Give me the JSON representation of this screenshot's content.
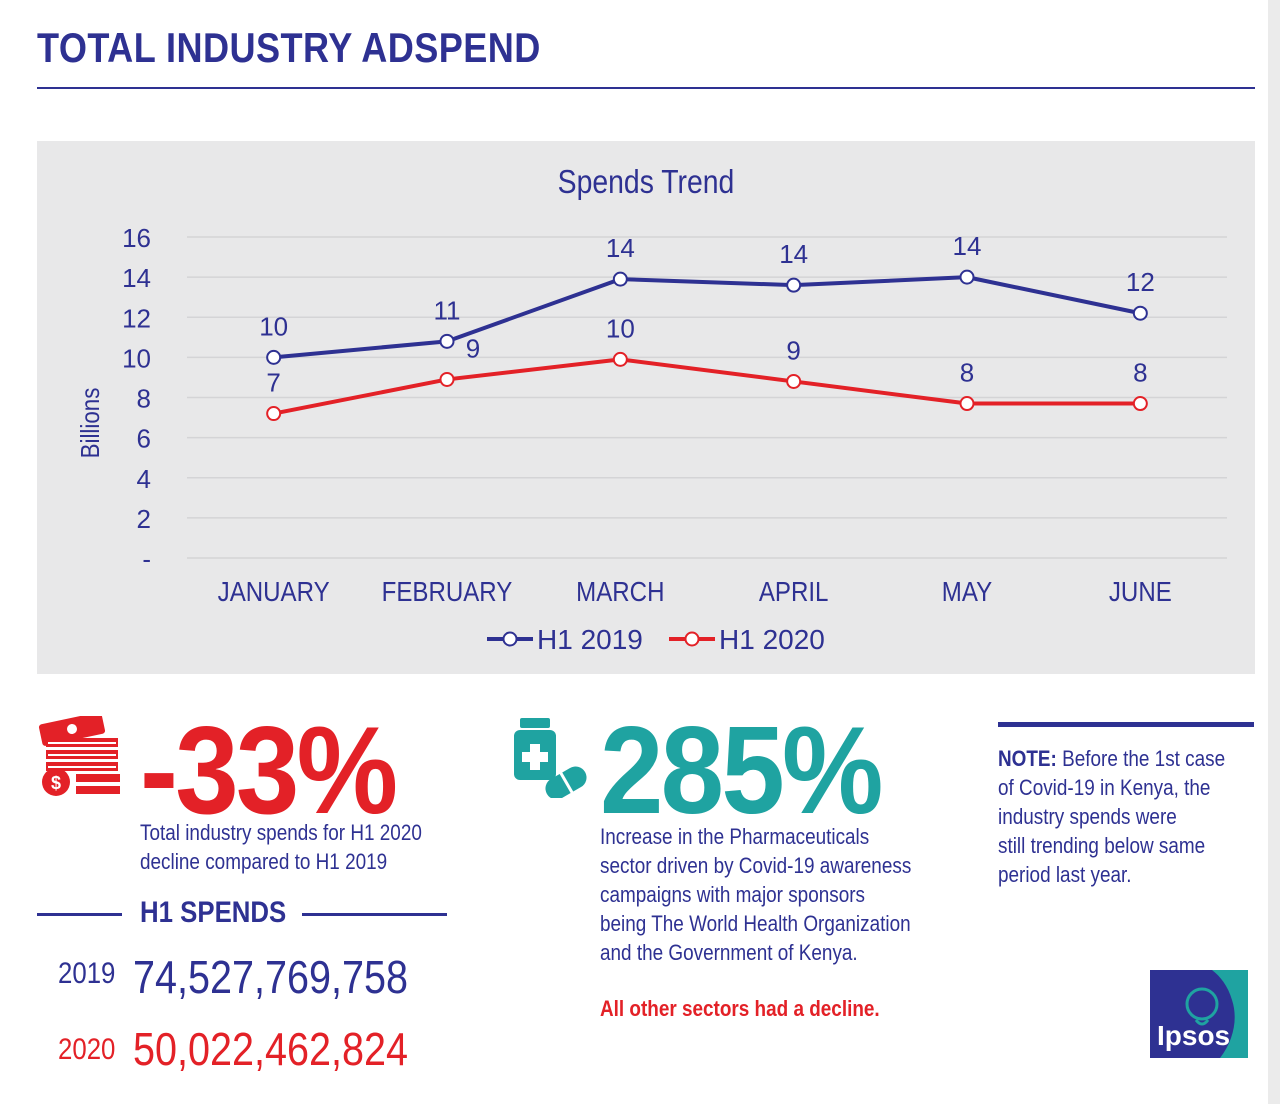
{
  "header": {
    "title": "TOTAL INDUSTRY ADSPEND"
  },
  "chart_data": {
    "type": "line",
    "title": "Spends Trend",
    "xlabel": "",
    "ylabel": "Billions",
    "ylim": [
      0,
      16
    ],
    "yticks": [
      "-",
      "2",
      "4",
      "6",
      "8",
      "10",
      "12",
      "14",
      "16"
    ],
    "categories": [
      "JANUARY",
      "FEBRUARY",
      "MARCH",
      "APRIL",
      "MAY",
      "JUNE"
    ],
    "series": [
      {
        "name": "H1 2019",
        "color": "#2e3192",
        "values": [
          10.0,
          10.8,
          13.9,
          13.6,
          14.0,
          12.2
        ],
        "labels": [
          "10",
          "11",
          "14",
          "14",
          "14",
          "12"
        ]
      },
      {
        "name": "H1 2020",
        "color": "#e32127",
        "values": [
          7.2,
          8.9,
          9.9,
          8.8,
          7.7,
          7.7
        ],
        "labels": [
          "7",
          "9",
          "10",
          "9",
          "8",
          "8"
        ]
      }
    ],
    "grid": true,
    "legend": "bottom-center"
  },
  "stats": {
    "decline": {
      "value": "-33%",
      "text_line1": "Total industry spends for H1 2020",
      "text_line2": "decline compared to H1 2019"
    },
    "pharma": {
      "value": "285%",
      "lines": [
        "Increase in the Pharmaceuticals",
        "sector driven by Covid-19 awareness",
        "campaigns with major sponsors",
        "being The World Health Organization",
        "and the Government of Kenya."
      ],
      "highlight": "All other sectors had a decline."
    }
  },
  "h1_spends": {
    "title": "H1 SPENDS",
    "rows": [
      {
        "year": "2019",
        "amount": "74,527,769,758",
        "color": "#2e3192"
      },
      {
        "year": "2020",
        "amount": "50,022,462,824",
        "color": "#e32127"
      }
    ]
  },
  "note": {
    "label": "NOTE:",
    "lines": [
      " Before the 1st case",
      "of Covid-19 in Kenya, the",
      "industry spends were",
      "still trending below same",
      "period last year."
    ]
  },
  "logo": {
    "text": "Ipsos"
  },
  "colors": {
    "brand": "#2e3192",
    "red": "#e32127",
    "teal": "#1fa3a1"
  }
}
